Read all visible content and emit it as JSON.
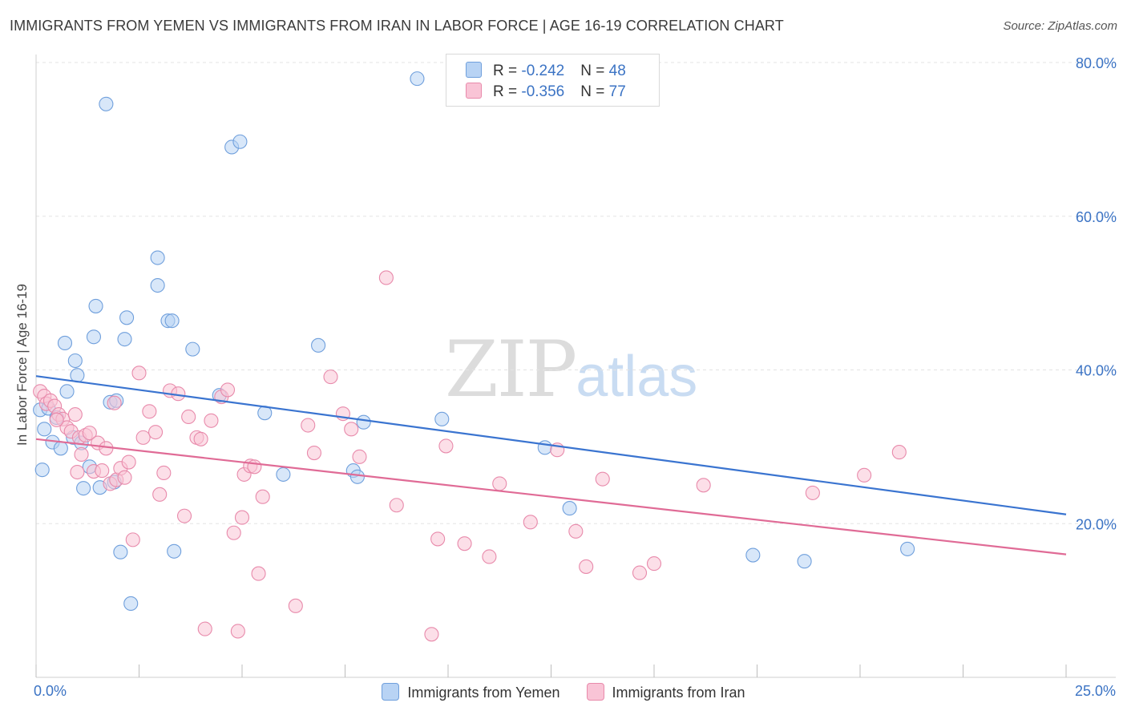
{
  "header": {
    "title": "IMMIGRANTS FROM YEMEN VS IMMIGRANTS FROM IRAN IN LABOR FORCE | AGE 16-19 CORRELATION CHART",
    "source": "Source: ZipAtlas.com"
  },
  "watermark": {
    "zip": "ZIP",
    "atlas": "atlas"
  },
  "legend": {
    "r_label": "R = ",
    "n_label": "N = ",
    "series": [
      {
        "r": "-0.242",
        "n": "48"
      },
      {
        "r": "-0.356",
        "n": "77"
      }
    ]
  },
  "colors": {
    "yemen_fill": "#b8d3f4",
    "yemen_stroke": "#6f9fdc",
    "yemen_line": "#3a74d0",
    "iran_fill": "#f9c4d6",
    "iran_stroke": "#e88aab",
    "iran_line": "#e06b96",
    "tick_text": "#3b73c4",
    "grid": "#e3e3e3"
  },
  "chart_data": {
    "type": "scatter",
    "title": "IMMIGRANTS FROM YEMEN VS IMMIGRANTS FROM IRAN IN LABOR FORCE | AGE 16-19 CORRELATION CHART",
    "xlabel": "",
    "ylabel": "In Labor Force | Age 16-19",
    "xlim": [
      0,
      25
    ],
    "ylim": [
      0,
      80
    ],
    "x_tick_labels": [
      "0.0%",
      "25.0%"
    ],
    "y_ticks": [
      20,
      40,
      60,
      80
    ],
    "y_tick_labels": [
      "20.0%",
      "40.0%",
      "60.0%",
      "80.0%"
    ],
    "grid": true,
    "series": [
      {
        "name": "Immigrants from Yemen",
        "r": -0.242,
        "n": 48,
        "trend": {
          "x": [
            0,
            25
          ],
          "y": [
            39.2,
            21.2
          ]
        },
        "points": [
          [
            0.1,
            34.8
          ],
          [
            0.2,
            32.3
          ],
          [
            0.3,
            35.0
          ],
          [
            0.4,
            30.6
          ],
          [
            0.5,
            33.8
          ],
          [
            0.6,
            29.8
          ],
          [
            0.7,
            43.5
          ],
          [
            0.75,
            37.2
          ],
          [
            0.9,
            31.2
          ],
          [
            0.95,
            41.2
          ],
          [
            1.0,
            39.3
          ],
          [
            1.1,
            30.5
          ],
          [
            1.15,
            24.6
          ],
          [
            1.3,
            27.4
          ],
          [
            1.4,
            44.3
          ],
          [
            1.45,
            48.3
          ],
          [
            1.55,
            24.7
          ],
          [
            1.7,
            74.6
          ],
          [
            1.8,
            35.8
          ],
          [
            1.9,
            25.4
          ],
          [
            1.95,
            36.0
          ],
          [
            2.05,
            16.3
          ],
          [
            2.15,
            44.0
          ],
          [
            2.2,
            46.8
          ],
          [
            2.3,
            9.6
          ],
          [
            2.95,
            54.6
          ],
          [
            2.95,
            51.0
          ],
          [
            3.2,
            46.4
          ],
          [
            3.3,
            46.4
          ],
          [
            3.35,
            16.4
          ],
          [
            3.8,
            42.7
          ],
          [
            4.45,
            36.7
          ],
          [
            4.75,
            69.0
          ],
          [
            4.95,
            69.7
          ],
          [
            5.55,
            34.4
          ],
          [
            6.0,
            26.4
          ],
          [
            6.85,
            43.2
          ],
          [
            7.7,
            26.9
          ],
          [
            7.8,
            26.1
          ],
          [
            7.95,
            33.2
          ],
          [
            9.25,
            77.9
          ],
          [
            9.85,
            33.6
          ],
          [
            12.35,
            29.9
          ],
          [
            12.95,
            22.0
          ],
          [
            17.4,
            15.9
          ],
          [
            18.65,
            15.1
          ],
          [
            21.15,
            16.7
          ],
          [
            0.15,
            27.0
          ]
        ]
      },
      {
        "name": "Immigrants from Iran",
        "r": -0.356,
        "n": 77,
        "trend": {
          "x": [
            0,
            25
          ],
          "y": [
            31.0,
            16.0
          ]
        },
        "points": [
          [
            0.1,
            37.2
          ],
          [
            0.2,
            36.6
          ],
          [
            0.25,
            35.6
          ],
          [
            0.35,
            36.0
          ],
          [
            0.45,
            35.3
          ],
          [
            0.55,
            34.2
          ],
          [
            0.65,
            33.6
          ],
          [
            0.75,
            32.5
          ],
          [
            0.85,
            32.0
          ],
          [
            0.95,
            34.2
          ],
          [
            1.05,
            31.2
          ],
          [
            1.1,
            29.0
          ],
          [
            1.2,
            31.5
          ],
          [
            1.3,
            31.8
          ],
          [
            1.4,
            26.8
          ],
          [
            1.5,
            30.5
          ],
          [
            1.6,
            26.9
          ],
          [
            1.7,
            29.8
          ],
          [
            1.8,
            25.2
          ],
          [
            1.9,
            35.7
          ],
          [
            1.95,
            25.7
          ],
          [
            2.05,
            27.2
          ],
          [
            2.15,
            26.0
          ],
          [
            2.25,
            28.0
          ],
          [
            2.35,
            17.9
          ],
          [
            2.5,
            39.6
          ],
          [
            2.6,
            31.2
          ],
          [
            2.75,
            34.6
          ],
          [
            2.9,
            31.9
          ],
          [
            3.0,
            23.8
          ],
          [
            3.1,
            26.6
          ],
          [
            3.25,
            37.3
          ],
          [
            3.45,
            36.9
          ],
          [
            3.6,
            21.0
          ],
          [
            3.7,
            33.9
          ],
          [
            3.9,
            31.2
          ],
          [
            4.0,
            31.0
          ],
          [
            4.1,
            6.3
          ],
          [
            4.25,
            33.4
          ],
          [
            4.5,
            36.5
          ],
          [
            4.65,
            37.4
          ],
          [
            4.8,
            18.8
          ],
          [
            4.9,
            6.0
          ],
          [
            5.0,
            20.8
          ],
          [
            5.05,
            26.4
          ],
          [
            5.2,
            27.5
          ],
          [
            5.3,
            27.4
          ],
          [
            5.4,
            13.5
          ],
          [
            5.5,
            23.5
          ],
          [
            6.3,
            9.3
          ],
          [
            6.6,
            32.8
          ],
          [
            6.75,
            29.2
          ],
          [
            7.15,
            39.1
          ],
          [
            7.45,
            34.3
          ],
          [
            7.65,
            32.3
          ],
          [
            7.85,
            28.7
          ],
          [
            8.5,
            52.0
          ],
          [
            8.75,
            22.4
          ],
          [
            9.6,
            5.6
          ],
          [
            9.75,
            18.0
          ],
          [
            9.95,
            30.1
          ],
          [
            10.4,
            17.4
          ],
          [
            11.0,
            15.7
          ],
          [
            11.25,
            25.2
          ],
          [
            12.0,
            20.2
          ],
          [
            12.65,
            29.6
          ],
          [
            13.1,
            19.0
          ],
          [
            13.35,
            14.4
          ],
          [
            13.75,
            25.8
          ],
          [
            14.65,
            13.6
          ],
          [
            15.0,
            14.8
          ],
          [
            16.2,
            25.0
          ],
          [
            18.85,
            24.0
          ],
          [
            20.1,
            26.3
          ],
          [
            20.95,
            29.3
          ],
          [
            1.0,
            26.7
          ],
          [
            0.5,
            33.5
          ]
        ]
      }
    ]
  },
  "bottom_legend": {
    "items": [
      "Immigrants from Yemen",
      "Immigrants from Iran"
    ]
  }
}
